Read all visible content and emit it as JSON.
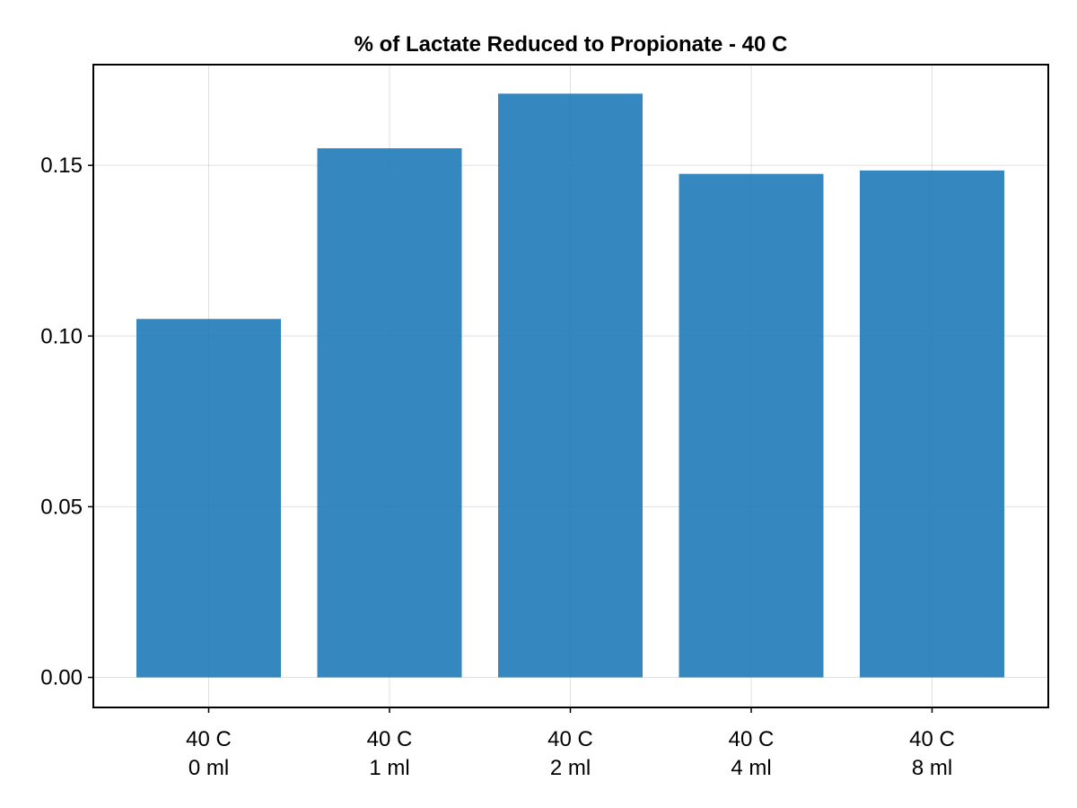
{
  "chart_data": {
    "type": "bar",
    "title": "% of Lactate Reduced to Propionate - 40 C",
    "xlabel": "",
    "ylabel": "",
    "categories": [
      [
        "40 C",
        "0 ml"
      ],
      [
        "40 C",
        "1 ml"
      ],
      [
        "40 C",
        "2 ml"
      ],
      [
        "40 C",
        "4 ml"
      ],
      [
        "40 C",
        "8 ml"
      ]
    ],
    "values": [
      0.105,
      0.155,
      0.171,
      0.1475,
      0.1485
    ],
    "ylim": [
      -0.0088,
      0.1795
    ],
    "yticks": [
      0.0,
      0.05,
      0.1,
      0.15
    ],
    "ytick_labels": [
      "0.00",
      "0.05",
      "0.10",
      "0.15"
    ],
    "grid": true,
    "legend": "none",
    "bar_color": "#1f7ab8"
  }
}
